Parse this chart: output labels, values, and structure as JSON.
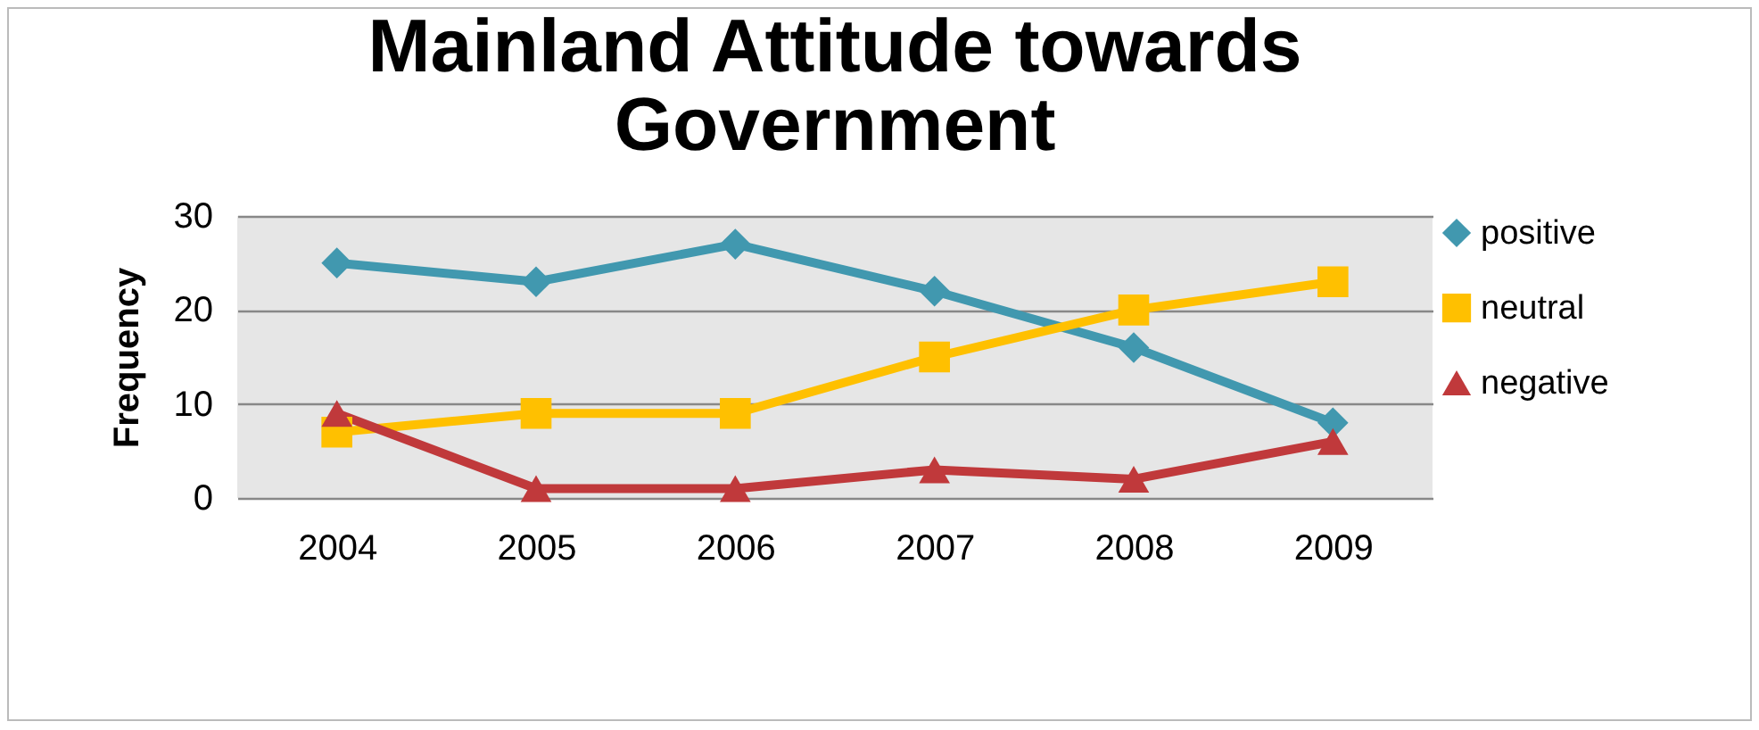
{
  "chart_data": {
    "type": "line",
    "title": "Mainland Attitude towards Government",
    "ylabel": "Frequency",
    "categories": [
      "2004",
      "2005",
      "2006",
      "2007",
      "2008",
      "2009"
    ],
    "series": [
      {
        "name": "positive",
        "color": "#4198af",
        "marker": "diamond",
        "values": [
          25,
          23,
          27,
          22,
          16,
          8
        ]
      },
      {
        "name": "neutral",
        "color": "#ffc000",
        "marker": "square",
        "values": [
          7,
          9,
          9,
          15,
          20,
          23
        ]
      },
      {
        "name": "negative",
        "color": "#c0393b",
        "marker": "triangle",
        "values": [
          9,
          1,
          1,
          3,
          2,
          6
        ]
      }
    ],
    "ylim": [
      0,
      30
    ],
    "yticks": [
      0,
      10,
      20,
      30
    ],
    "grid": "y",
    "legend": "right"
  }
}
